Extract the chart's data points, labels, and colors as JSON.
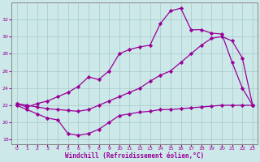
{
  "line_bottom": [
    22.0,
    21.5,
    21.0,
    20.5,
    20.3,
    18.7,
    18.5,
    18.7,
    19.2,
    20.0,
    20.8,
    21.0,
    21.2,
    21.3,
    21.5,
    21.5,
    21.6,
    21.7,
    21.8,
    21.9,
    22.0,
    22.0,
    22.0,
    22.0
  ],
  "line_mid": [
    22.2,
    22.0,
    21.8,
    21.6,
    21.5,
    21.4,
    21.3,
    21.5,
    22.0,
    22.5,
    23.0,
    23.5,
    24.0,
    24.8,
    25.5,
    26.0,
    27.0,
    28.0,
    29.0,
    29.8,
    30.0,
    29.5,
    27.5,
    22.0
  ],
  "line_top": [
    22.2,
    21.8,
    22.2,
    22.5,
    23.0,
    23.5,
    24.2,
    25.3,
    25.0,
    26.0,
    28.0,
    28.5,
    28.8,
    29.0,
    31.5,
    33.0,
    33.3,
    30.8,
    30.8,
    30.4,
    30.3,
    27.0,
    24.0,
    22.0
  ],
  "color": "#990099",
  "bg_color": "#cce8e8",
  "xlabel": "Windchill (Refroidissement éolien,°C)",
  "ylim": [
    17.5,
    34.0
  ],
  "xlim": [
    -0.5,
    23.5
  ],
  "yticks": [
    18,
    20,
    22,
    24,
    26,
    28,
    30,
    32
  ],
  "xticks": [
    0,
    1,
    2,
    3,
    4,
    5,
    6,
    7,
    8,
    9,
    10,
    11,
    12,
    13,
    14,
    15,
    16,
    17,
    18,
    19,
    20,
    21,
    22,
    23
  ]
}
